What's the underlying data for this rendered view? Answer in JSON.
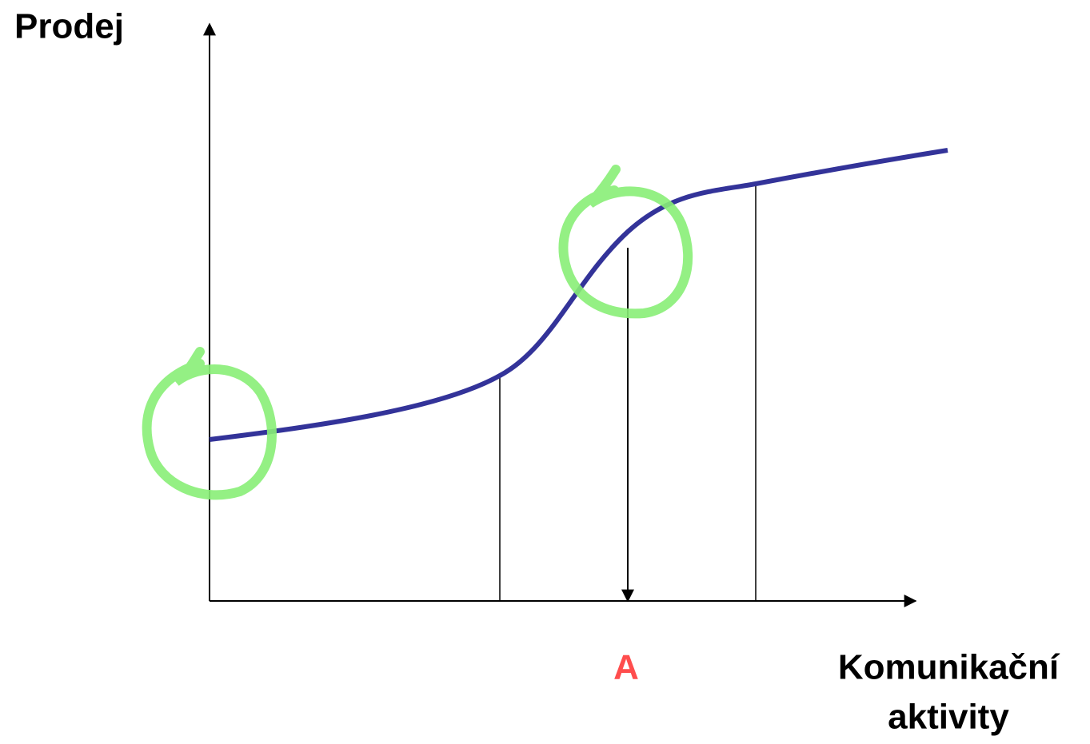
{
  "axes": {
    "y_label": "Prodej",
    "x_label_lines": [
      "Komunikační",
      "aktivity"
    ]
  },
  "marker": {
    "label": "A"
  }
}
